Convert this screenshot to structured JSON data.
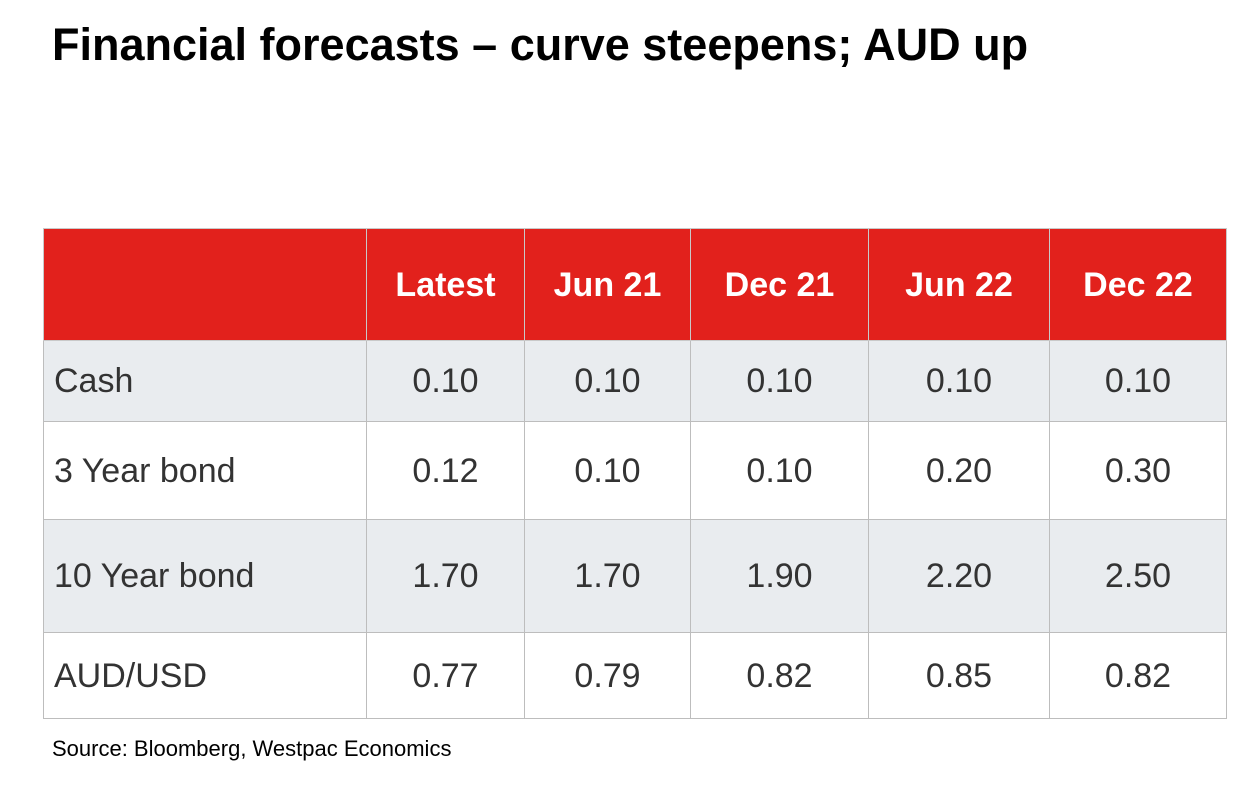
{
  "title": "Financial forecasts – curve steepens; AUD up",
  "table": {
    "columns": [
      "",
      "Latest",
      "Jun 21",
      "Dec 21",
      "Jun 22",
      "Dec 22"
    ],
    "rows": [
      {
        "label": "Cash",
        "values": [
          "0.10",
          "0.10",
          "0.10",
          "0.10",
          "0.10"
        ]
      },
      {
        "label": "3 Year bond",
        "values": [
          "0.12",
          "0.10",
          "0.10",
          "0.20",
          "0.30"
        ]
      },
      {
        "label": "10 Year bond",
        "values": [
          "1.70",
          "1.70",
          "1.90",
          "2.20",
          "2.50"
        ]
      },
      {
        "label": "AUD/USD",
        "values": [
          "0.77",
          "0.79",
          "0.82",
          "0.85",
          "0.82"
        ]
      }
    ]
  },
  "source": "Source: Bloomberg, Westpac Economics",
  "colors": {
    "header_background": "#e2211c",
    "header_text": "#ffffff",
    "shaded_row": "#e9ecef",
    "body_text": "#333333"
  }
}
